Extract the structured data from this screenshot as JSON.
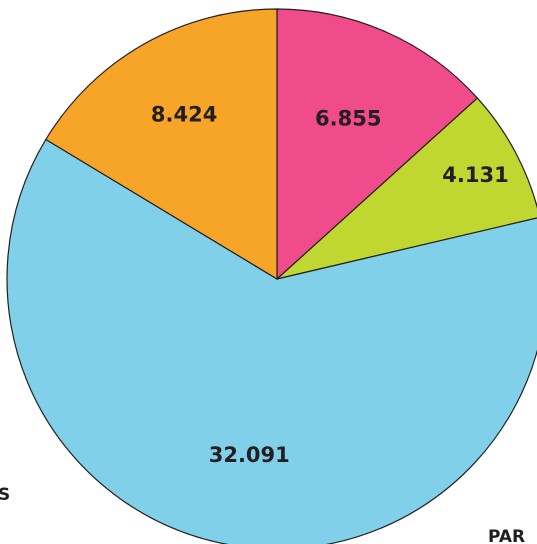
{
  "chart_data": {
    "type": "pie",
    "slices": [
      {
        "value": 6.855,
        "label": "6.855",
        "color": "#f04b8a"
      },
      {
        "value": 4.131,
        "label": "4.131",
        "color": "#c0d631"
      },
      {
        "value": 32.091,
        "label": "32.091",
        "color": "#80d0ea"
      },
      {
        "value": 8.424,
        "label": "8.424",
        "color": "#f7a528"
      }
    ],
    "start_angle_deg": 0,
    "direction": "clockwise",
    "stroke_color": "#231f20"
  },
  "edge_text": {
    "left_fragment": "S",
    "right_fragment": "PAR"
  }
}
